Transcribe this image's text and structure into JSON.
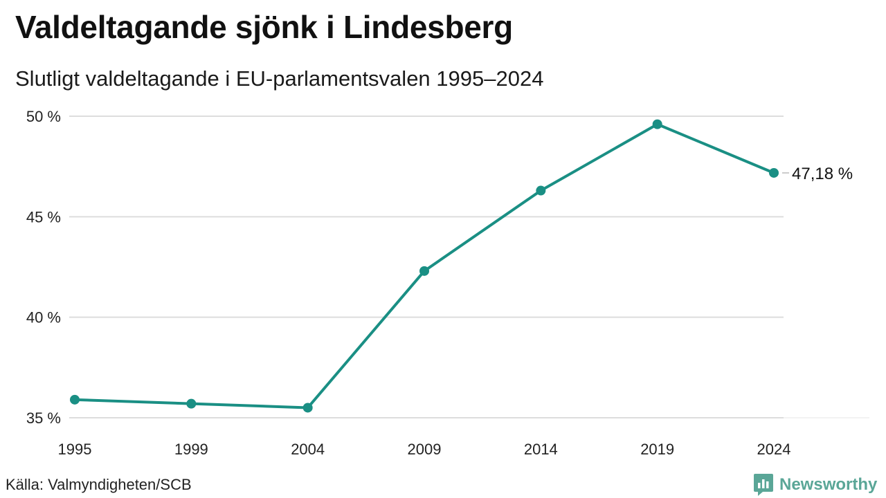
{
  "title": "Valdeltagande sjönk i Lindesberg",
  "subtitle": "Slutligt valdeltagande i EU-parlamentsvalen 1995–2024",
  "source": "Källa: Valmyndigheten/SCB",
  "brand": {
    "name": "Newsworthy",
    "icon": "newsworthy-chart-bubble-icon",
    "color": "#5aa697"
  },
  "chart_data": {
    "type": "line",
    "categories": [
      "1995",
      "1999",
      "2004",
      "2009",
      "2014",
      "2019",
      "2024"
    ],
    "series": [
      {
        "values": [
          35.9,
          35.7,
          35.5,
          42.3,
          46.3,
          49.6,
          47.18
        ],
        "color": "#1a8f84"
      }
    ],
    "ylim": [
      35,
      50
    ],
    "y_ticks": [
      35,
      40,
      45,
      50
    ],
    "y_tick_labels": [
      "35 %",
      "40 %",
      "45 %",
      "50 %"
    ],
    "end_label": "47,18 %",
    "grid": true,
    "legend": "none"
  }
}
